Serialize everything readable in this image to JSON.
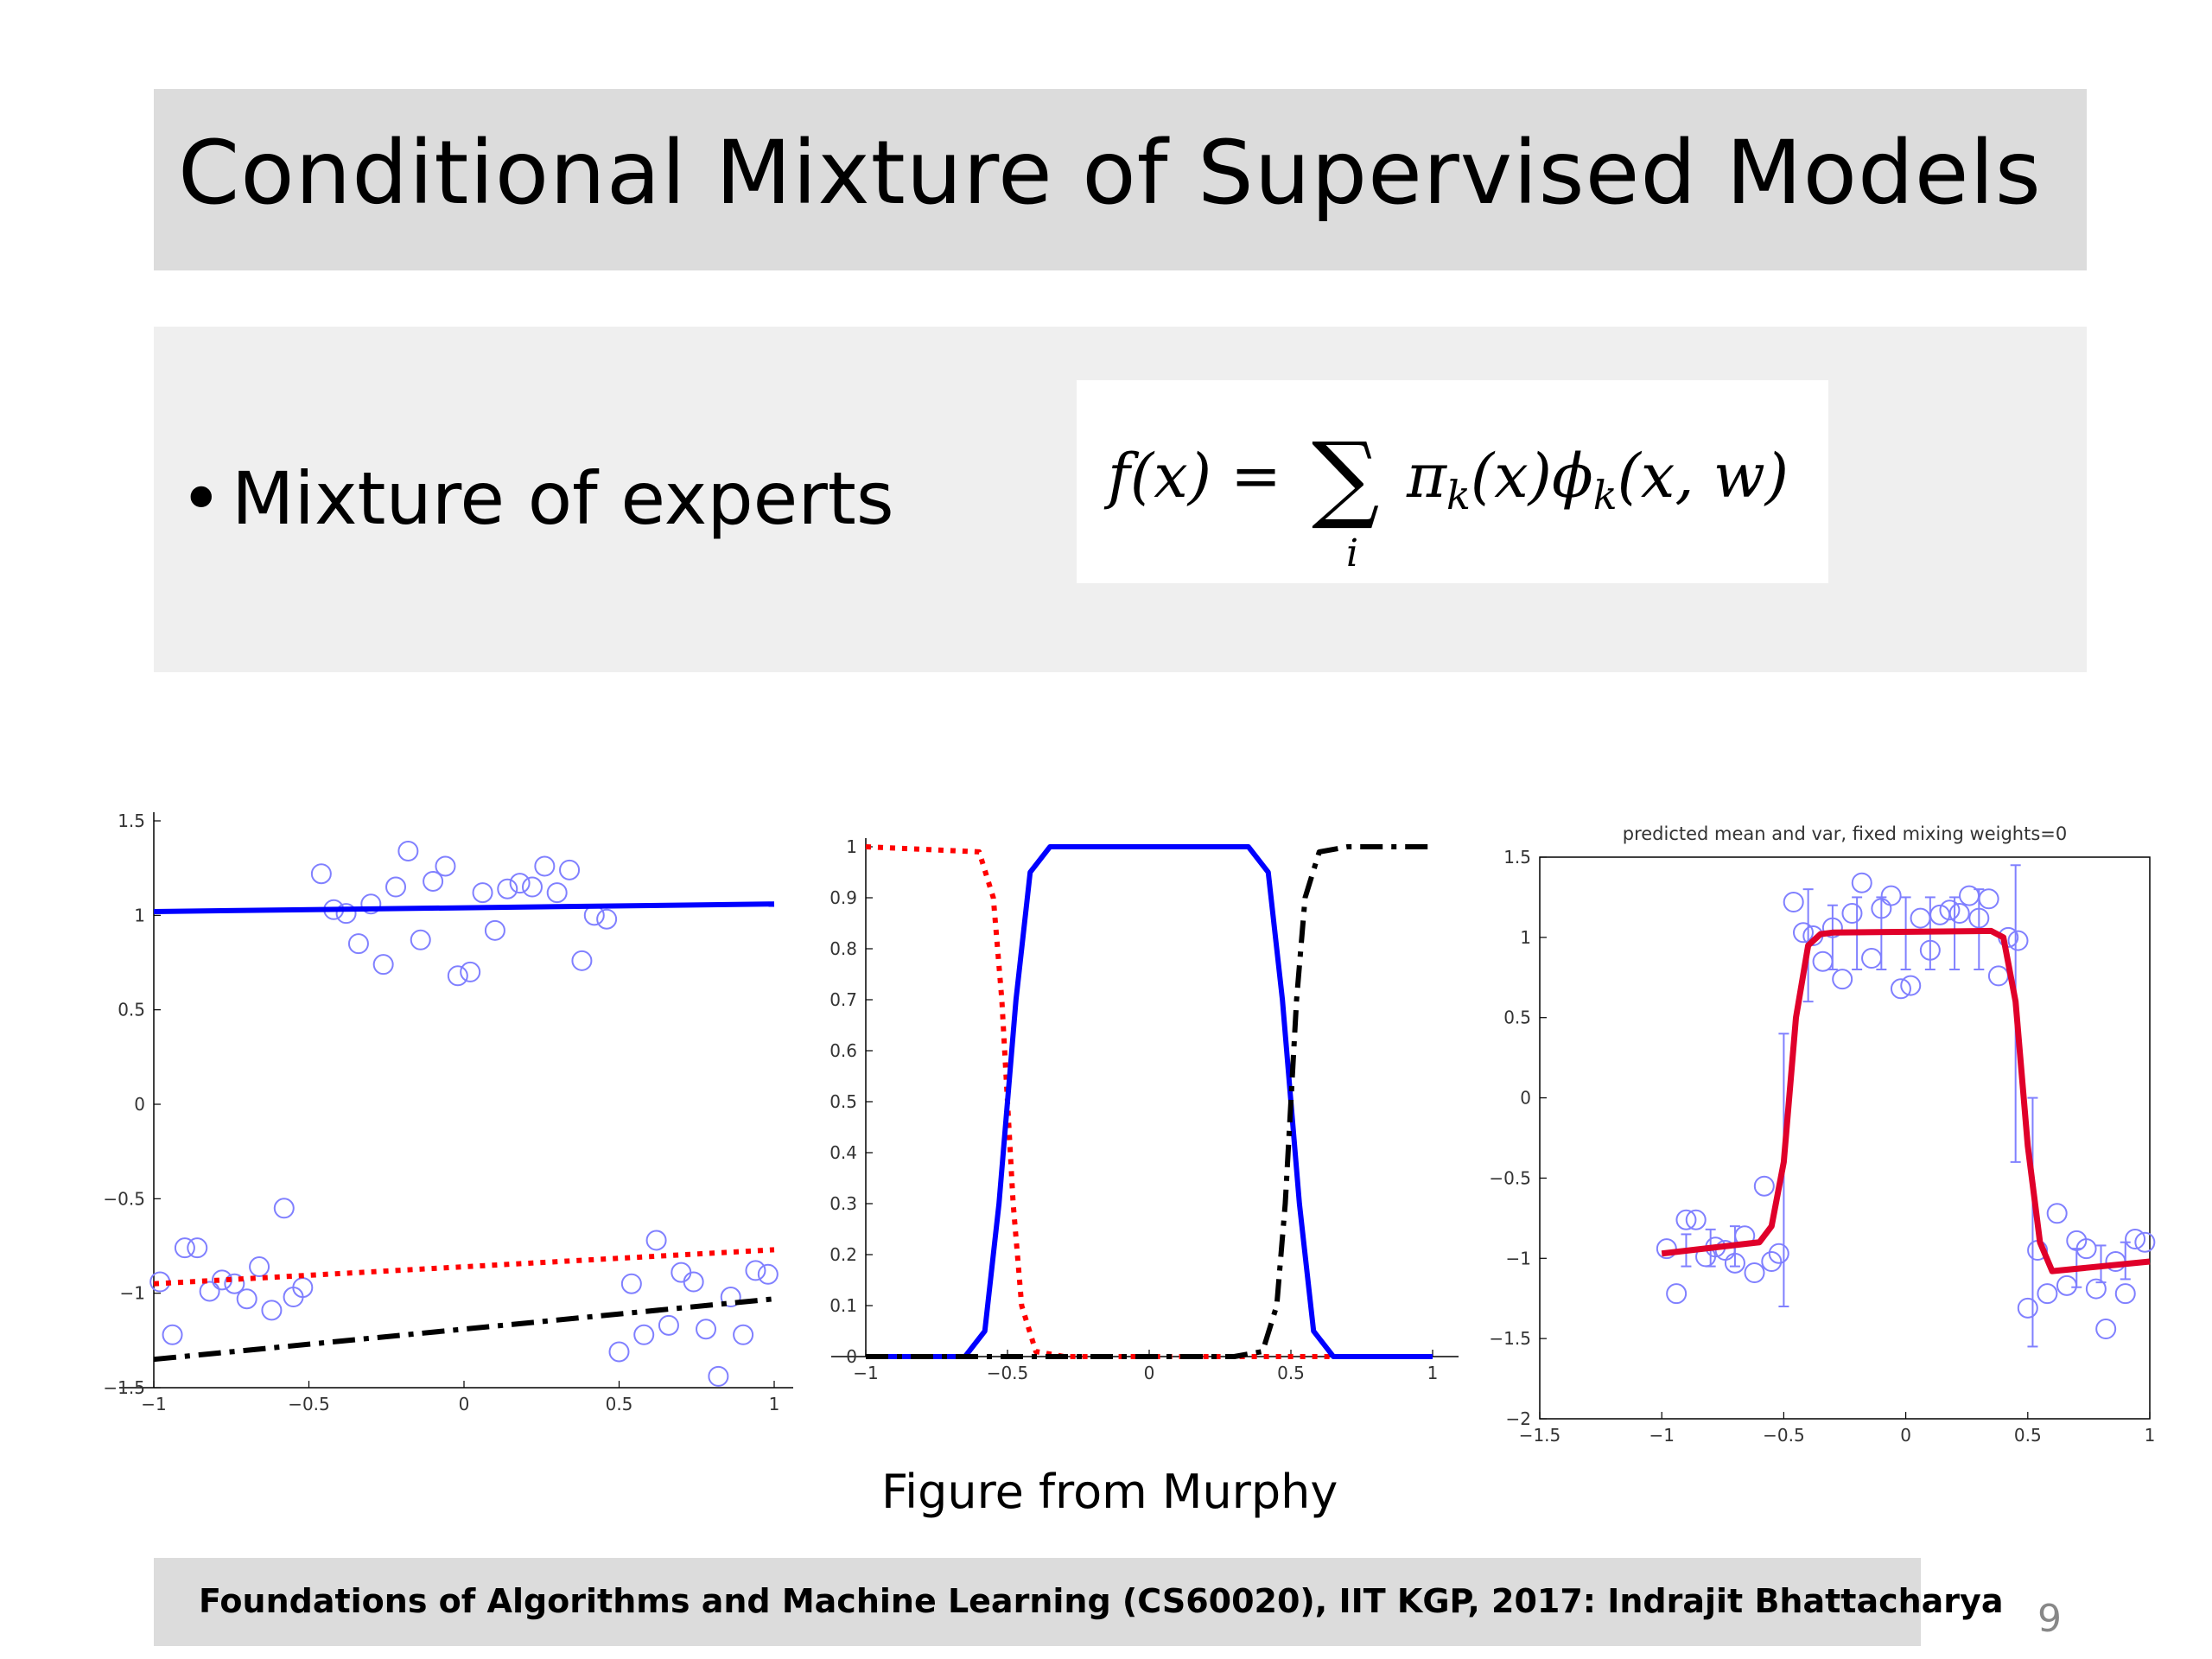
{
  "slide": {
    "title": "Conditional Mixture of Supervised Models",
    "bullet": "Mixture of experts",
    "caption": "Figure from Murphy",
    "footer": "Foundations of Algorithms and Machine Learning (CS60020), IIT KGP, 2017: Indrajit Bhattacharya",
    "page_number": "9"
  },
  "formula": {
    "lhs": "f(x) =",
    "sum": "∑",
    "sub": "i",
    "rhs": "πk(x)ϕk(x, w)"
  },
  "colors": {
    "blue": "#0000ff",
    "red": "#ff0000",
    "black": "#000000",
    "marker": "#8080ff",
    "fit": "#e0002a"
  },
  "chart_data": [
    {
      "type": "scatter",
      "title": "",
      "xlabel": "",
      "ylabel": "",
      "xlim": [
        -1,
        1
      ],
      "ylim": [
        -1.5,
        1.5
      ],
      "xticks": [
        -1,
        -0.5,
        0,
        0.5,
        1
      ],
      "xtick_labels": [
        "-1",
        "-0.5",
        "0",
        "0.5",
        "1"
      ],
      "yticks": [
        -1.5,
        -1,
        -0.5,
        0,
        0.5,
        1,
        1.5
      ],
      "ytick_labels": [
        "-1.5",
        "-1",
        "-0.5",
        "0",
        "0.5",
        "1",
        "1.5"
      ],
      "grid": false,
      "points": [
        [
          -0.46,
          1.22
        ],
        [
          -0.42,
          1.03
        ],
        [
          -0.38,
          1.01
        ],
        [
          -0.34,
          0.85
        ],
        [
          -0.3,
          1.06
        ],
        [
          -0.26,
          0.74
        ],
        [
          -0.22,
          1.15
        ],
        [
          -0.18,
          1.34
        ],
        [
          -0.14,
          0.87
        ],
        [
          -0.1,
          1.18
        ],
        [
          -0.06,
          1.26
        ],
        [
          -0.02,
          0.68
        ],
        [
          0.02,
          0.7
        ],
        [
          0.06,
          1.12
        ],
        [
          0.1,
          0.92
        ],
        [
          0.14,
          1.14
        ],
        [
          0.18,
          1.17
        ],
        [
          0.22,
          1.15
        ],
        [
          0.26,
          1.26
        ],
        [
          0.3,
          1.12
        ],
        [
          0.34,
          1.24
        ],
        [
          0.38,
          0.76
        ],
        [
          0.42,
          1.0
        ],
        [
          0.46,
          0.98
        ],
        [
          -0.98,
          -0.94
        ],
        [
          -0.94,
          -1.22
        ],
        [
          -0.9,
          -0.76
        ],
        [
          -0.86,
          -0.76
        ],
        [
          -0.82,
          -0.99
        ],
        [
          -0.78,
          -0.93
        ],
        [
          -0.74,
          -0.95
        ],
        [
          -0.7,
          -1.03
        ],
        [
          -0.66,
          -0.86
        ],
        [
          -0.62,
          -1.09
        ],
        [
          -0.58,
          -0.55
        ],
        [
          -0.55,
          -1.02
        ],
        [
          -0.52,
          -0.97
        ],
        [
          0.5,
          -1.31
        ],
        [
          0.54,
          -0.95
        ],
        [
          0.58,
          -1.22
        ],
        [
          0.62,
          -0.72
        ],
        [
          0.66,
          -1.17
        ],
        [
          0.7,
          -0.89
        ],
        [
          0.74,
          -0.94
        ],
        [
          0.78,
          -1.19
        ],
        [
          0.82,
          -1.44
        ],
        [
          0.86,
          -1.02
        ],
        [
          0.9,
          -1.22
        ],
        [
          0.94,
          -0.88
        ],
        [
          0.98,
          -0.9
        ]
      ],
      "lines": [
        {
          "style": "solid",
          "color": "blue",
          "x": [
            -1,
            1
          ],
          "y": [
            1.02,
            1.06
          ]
        },
        {
          "style": "dotted",
          "color": "red",
          "x": [
            -1,
            1
          ],
          "y": [
            -0.95,
            -0.77
          ]
        },
        {
          "style": "dashdot",
          "color": "black",
          "x": [
            -1,
            1
          ],
          "y": [
            -1.35,
            -1.03
          ]
        }
      ]
    },
    {
      "type": "line",
      "title": "",
      "xlabel": "",
      "ylabel": "",
      "xlim": [
        -1,
        1
      ],
      "ylim": [
        0,
        1
      ],
      "xticks": [
        -1,
        -0.5,
        0,
        0.5,
        1
      ],
      "xtick_labels": [
        "-1",
        "-0.5",
        "0",
        "0.5",
        "1"
      ],
      "yticks": [
        0,
        0.1,
        0.2,
        0.3,
        0.4,
        0.5,
        0.6,
        0.7,
        0.8,
        0.9,
        1
      ],
      "ytick_labels": [
        "0",
        "0.1",
        "0.2",
        "0.3",
        "0.4",
        "0.5",
        "0.6",
        "0.7",
        "0.8",
        "0.9",
        "1"
      ],
      "grid": false,
      "series": [
        {
          "style": "dotted",
          "color": "red",
          "description_points": "high until -0.5 then falls to 0",
          "x": [
            -1,
            -0.6,
            -0.55,
            -0.52,
            -0.5,
            -0.48,
            -0.45,
            -0.4,
            -0.3,
            1
          ],
          "y": [
            1,
            0.99,
            0.9,
            0.7,
            0.5,
            0.3,
            0.1,
            0.01,
            0,
            0
          ]
        },
        {
          "style": "solid",
          "color": "blue",
          "x": [
            -1,
            -0.65,
            -0.58,
            -0.53,
            -0.5,
            -0.47,
            -0.42,
            -0.35,
            0.35,
            0.42,
            0.47,
            0.5,
            0.53,
            0.58,
            0.65,
            1
          ],
          "y": [
            0,
            0,
            0.05,
            0.3,
            0.5,
            0.7,
            0.95,
            1,
            1,
            0.95,
            0.7,
            0.5,
            0.3,
            0.05,
            0,
            0
          ]
        },
        {
          "style": "dashdot",
          "color": "black",
          "x": [
            -1,
            0.3,
            0.4,
            0.45,
            0.48,
            0.5,
            0.52,
            0.55,
            0.6,
            0.7,
            1
          ],
          "y": [
            0,
            0,
            0.01,
            0.1,
            0.3,
            0.5,
            0.7,
            0.9,
            0.99,
            1,
            1
          ]
        }
      ]
    },
    {
      "type": "line",
      "title": "predicted mean and var, fixed mixing weights=0",
      "xlabel": "",
      "ylabel": "",
      "xlim": [
        -1.5,
        1
      ],
      "ylim": [
        -2,
        1.5
      ],
      "xticks": [
        -1.5,
        -1,
        -0.5,
        0,
        0.5,
        1
      ],
      "xtick_labels": [
        "-1.5",
        "-1",
        "-0.5",
        "0",
        "0.5",
        "1"
      ],
      "yticks": [
        -2,
        -1.5,
        -1,
        -0.5,
        0,
        0.5,
        1,
        1.5
      ],
      "ytick_labels": [
        "-2",
        "-1.5",
        "-1",
        "-0.5",
        "0",
        "0.5",
        "1",
        "1.5"
      ],
      "grid": false,
      "series": [
        {
          "style": "solid",
          "color": "fit",
          "x": [
            -1,
            -0.6,
            -0.55,
            -0.5,
            -0.45,
            -0.4,
            -0.35,
            -0.3,
            0.35,
            0.4,
            0.45,
            0.5,
            0.55,
            0.6,
            1
          ],
          "y": [
            -0.97,
            -0.9,
            -0.8,
            -0.4,
            0.5,
            0.95,
            1.02,
            1.03,
            1.04,
            1.0,
            0.6,
            -0.3,
            -0.9,
            -1.08,
            -1.02
          ]
        }
      ],
      "errorbars": [
        {
          "x": -0.5,
          "y": -0.2,
          "lo": -1.3,
          "hi": 0.4
        },
        {
          "x": -0.4,
          "y": 1.0,
          "lo": 0.6,
          "hi": 1.3
        },
        {
          "x": -0.3,
          "y": 1.0,
          "lo": 0.8,
          "hi": 1.2
        },
        {
          "x": -0.2,
          "y": 1.03,
          "lo": 0.8,
          "hi": 1.25
        },
        {
          "x": -0.1,
          "y": 1.03,
          "lo": 0.8,
          "hi": 1.25
        },
        {
          "x": 0.0,
          "y": 1.03,
          "lo": 0.8,
          "hi": 1.25
        },
        {
          "x": 0.1,
          "y": 1.03,
          "lo": 0.8,
          "hi": 1.25
        },
        {
          "x": 0.2,
          "y": 1.03,
          "lo": 0.8,
          "hi": 1.25
        },
        {
          "x": 0.3,
          "y": 1.03,
          "lo": 0.8,
          "hi": 1.3
        },
        {
          "x": 0.45,
          "y": 0.3,
          "lo": -0.4,
          "hi": 1.45
        },
        {
          "x": 0.52,
          "y": -0.5,
          "lo": -1.55,
          "hi": 0.0
        },
        {
          "x": -0.9,
          "y": -0.95,
          "lo": -1.05,
          "hi": -0.85
        },
        {
          "x": -0.8,
          "y": -0.93,
          "lo": -1.05,
          "hi": -0.82
        },
        {
          "x": -0.7,
          "y": -0.92,
          "lo": -1.05,
          "hi": -0.8
        },
        {
          "x": 0.7,
          "y": -1.06,
          "lo": -1.18,
          "hi": -0.94
        },
        {
          "x": 0.8,
          "y": -1.04,
          "lo": -1.15,
          "hi": -0.92
        },
        {
          "x": 0.9,
          "y": -1.02,
          "lo": -1.13,
          "hi": -0.9
        }
      ],
      "points": [
        [
          -0.98,
          -0.94
        ],
        [
          -0.94,
          -1.22
        ],
        [
          -0.9,
          -0.76
        ],
        [
          -0.86,
          -0.76
        ],
        [
          -0.82,
          -0.99
        ],
        [
          -0.78,
          -0.93
        ],
        [
          -0.74,
          -0.95
        ],
        [
          -0.7,
          -1.03
        ],
        [
          -0.66,
          -0.86
        ],
        [
          -0.62,
          -1.09
        ],
        [
          -0.58,
          -0.55
        ],
        [
          -0.55,
          -1.02
        ],
        [
          -0.52,
          -0.97
        ],
        [
          -0.46,
          1.22
        ],
        [
          -0.42,
          1.03
        ],
        [
          -0.38,
          1.01
        ],
        [
          -0.34,
          0.85
        ],
        [
          -0.3,
          1.06
        ],
        [
          -0.26,
          0.74
        ],
        [
          -0.22,
          1.15
        ],
        [
          -0.18,
          1.34
        ],
        [
          -0.14,
          0.87
        ],
        [
          -0.1,
          1.18
        ],
        [
          -0.06,
          1.26
        ],
        [
          -0.02,
          0.68
        ],
        [
          0.02,
          0.7
        ],
        [
          0.06,
          1.12
        ],
        [
          0.1,
          0.92
        ],
        [
          0.14,
          1.14
        ],
        [
          0.18,
          1.17
        ],
        [
          0.22,
          1.15
        ],
        [
          0.26,
          1.26
        ],
        [
          0.3,
          1.12
        ],
        [
          0.34,
          1.24
        ],
        [
          0.38,
          0.76
        ],
        [
          0.42,
          1.0
        ],
        [
          0.46,
          0.98
        ],
        [
          0.5,
          -1.31
        ],
        [
          0.54,
          -0.95
        ],
        [
          0.58,
          -1.22
        ],
        [
          0.62,
          -0.72
        ],
        [
          0.66,
          -1.17
        ],
        [
          0.7,
          -0.89
        ],
        [
          0.74,
          -0.94
        ],
        [
          0.78,
          -1.19
        ],
        [
          0.82,
          -1.44
        ],
        [
          0.86,
          -1.02
        ],
        [
          0.9,
          -1.22
        ],
        [
          0.94,
          -0.88
        ],
        [
          0.98,
          -0.9
        ]
      ]
    }
  ]
}
